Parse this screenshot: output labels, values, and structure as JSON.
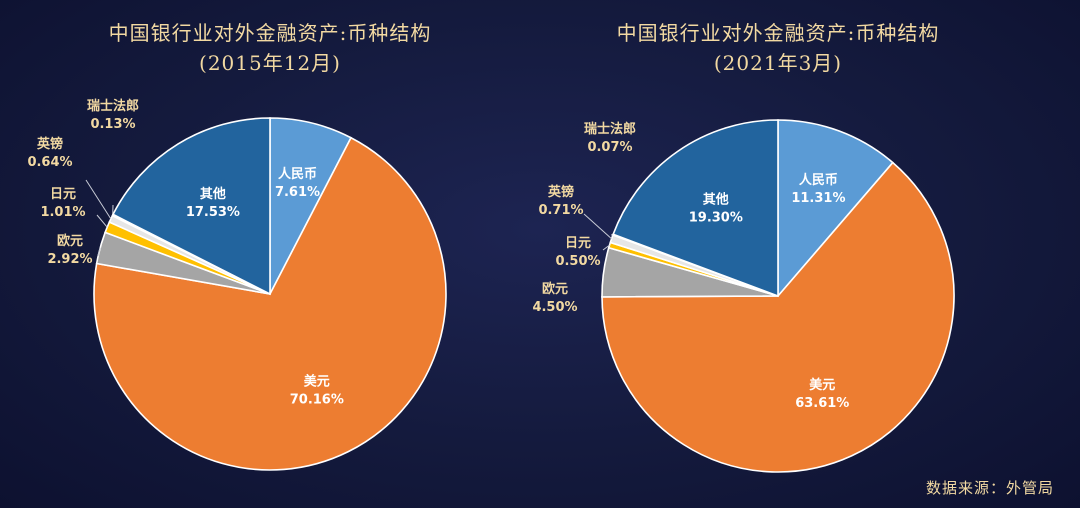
{
  "source_label": "数据来源：外管局",
  "colors": {
    "美元": "#ed7d31",
    "人民币": "#5b9bd5",
    "其他": "#22649e",
    "瑞士法郎": "#4472c4",
    "英镑": "#e6e6e6",
    "日元": "#ffc000",
    "欧元": "#a5a5a5",
    "outline": "#ffffff",
    "inside_label": "#ffffff",
    "outside_label": "#f2d9a2",
    "leader": "#c8cbd6"
  },
  "chart_data": [
    {
      "type": "pie",
      "title": "中国银行业对外金融资产:币种结构",
      "subtitle": "(2015年12月)",
      "slices": [
        {
          "name": "人民币",
          "value": 7.61,
          "label": "7.61%"
        },
        {
          "name": "美元",
          "value": 70.16,
          "label": "70.16%"
        },
        {
          "name": "欧元",
          "value": 2.92,
          "label": "2.92%"
        },
        {
          "name": "日元",
          "value": 1.01,
          "label": "1.01%"
        },
        {
          "name": "英镑",
          "value": 0.64,
          "label": "0.64%"
        },
        {
          "name": "瑞士法郎",
          "value": 0.13,
          "label": "0.13%"
        },
        {
          "name": "其他",
          "value": 17.53,
          "label": "17.53%"
        }
      ]
    },
    {
      "type": "pie",
      "title": "中国银行业对外金融资产:币种结构",
      "subtitle": "(2021年3月)",
      "slices": [
        {
          "name": "人民币",
          "value": 11.31,
          "label": "11.31%"
        },
        {
          "name": "美元",
          "value": 63.61,
          "label": "63.61%"
        },
        {
          "name": "欧元",
          "value": 4.5,
          "label": "4.50%"
        },
        {
          "name": "日元",
          "value": 0.5,
          "label": "0.50%"
        },
        {
          "name": "英镑",
          "value": 0.71,
          "label": "0.71%"
        },
        {
          "name": "瑞士法郎",
          "value": 0.07,
          "label": "0.07%"
        },
        {
          "name": "其他",
          "value": 19.3,
          "label": "19.30%"
        }
      ]
    }
  ]
}
